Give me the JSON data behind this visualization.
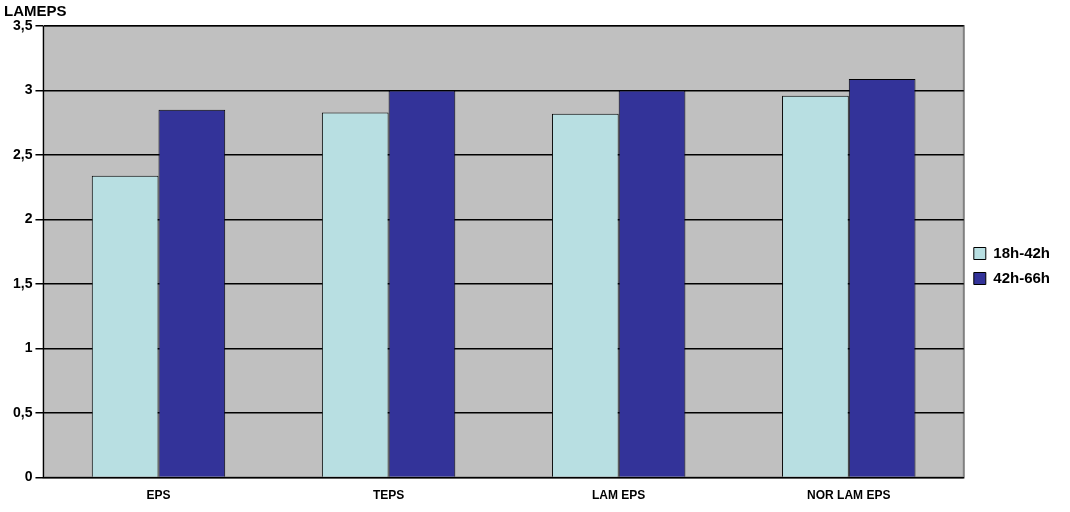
{
  "chart_data": {
    "type": "bar",
    "ylabel": "LAMEPS",
    "categories": [
      "EPS",
      "TEPS",
      "LAM EPS",
      "NOR LAM EPS"
    ],
    "series": [
      {
        "name": "18h-42h",
        "color": "#b8dfe2",
        "values": [
          2.34,
          2.83,
          2.82,
          2.96
        ]
      },
      {
        "name": "42h-66h",
        "color": "#333399",
        "values": [
          2.85,
          3.0,
          3.0,
          3.09
        ]
      }
    ],
    "ylim": [
      0,
      3.5
    ],
    "yticks": [
      0,
      {
        "value": 0.5,
        "label": "0,5"
      },
      1,
      {
        "value": 1.5,
        "label": "1,5"
      },
      2,
      {
        "value": 2.5,
        "label": "2,5"
      },
      3,
      {
        "value": 3.5,
        "label": "3,5"
      }
    ],
    "grid": "y",
    "legend": "right"
  }
}
